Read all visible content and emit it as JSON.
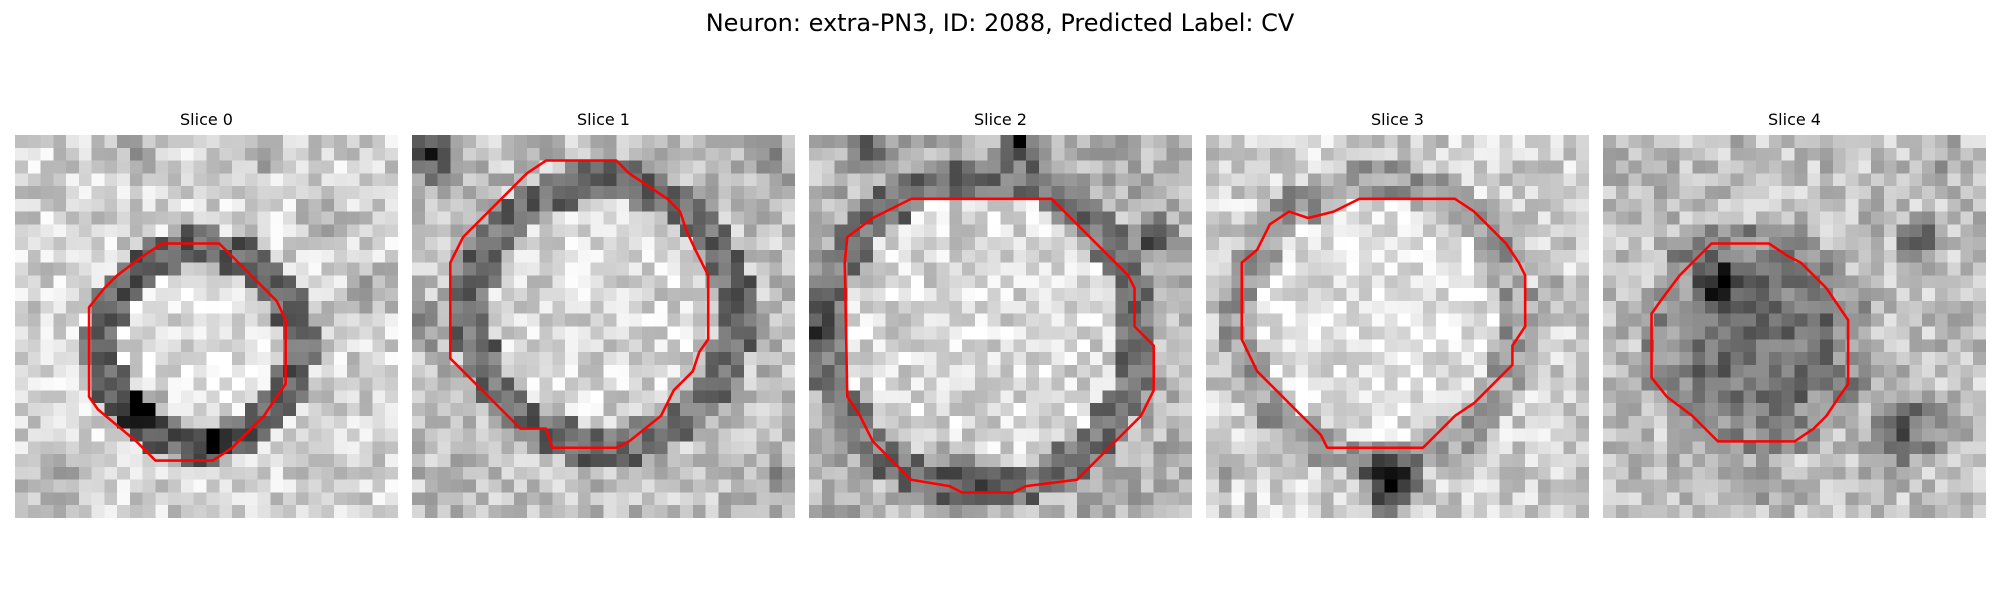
{
  "figure": {
    "title": "Neuron: extra-PN3, ID: 2088, Predicted Label: CV"
  },
  "contour_color": "#ff0000",
  "colormap": "gray",
  "panels": [
    {
      "title": "Slice 0"
    },
    {
      "title": "Slice 1"
    },
    {
      "title": "Slice 2"
    },
    {
      "title": "Slice 3"
    },
    {
      "title": "Slice 4"
    }
  ]
}
